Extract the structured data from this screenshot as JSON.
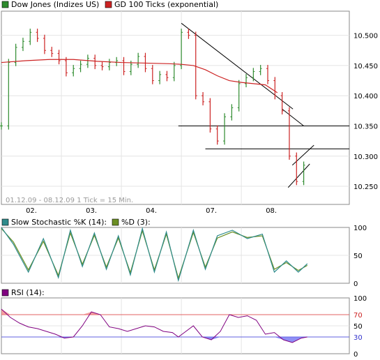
{
  "chart_data": [
    {
      "type": "line",
      "panel": "price",
      "title": "",
      "legend": [
        {
          "name": "Dow Jones (Indizes US)",
          "color": "#2e8b2e"
        },
        {
          "name": "GD 100 Ticks (exponential)",
          "color": "#cc2222"
        }
      ],
      "info": "01.12.09 - 08.12.09   1 Tick = 15 Min.",
      "ylim": [
        10220,
        10540
      ],
      "yticks": [
        "10.500",
        "10.450",
        "10.400",
        "10.350",
        "10.300",
        "10.250"
      ],
      "ytick_values": [
        10500,
        10450,
        10400,
        10350,
        10300,
        10250
      ],
      "x_categories": [
        "02.",
        "03.",
        "04.",
        "07.",
        "08."
      ],
      "x_positions": [
        0.5,
        1.5,
        2.5,
        3.5,
        4.5
      ],
      "xlim": [
        0,
        5.8
      ],
      "session_starts": [
        0,
        1,
        2,
        3,
        4
      ],
      "series": [
        {
          "name": "Dow Jones (Indizes US)",
          "style": "bars",
          "x": [
            0,
            0.12,
            0.24,
            0.36,
            0.48,
            0.6,
            0.72,
            0.84,
            0.96,
            1.08,
            1.2,
            1.32,
            1.44,
            1.56,
            1.68,
            1.8,
            1.92,
            2.04,
            2.16,
            2.28,
            2.4,
            2.52,
            2.64,
            2.76,
            2.88,
            3.0,
            3.12,
            3.24,
            3.36,
            3.48,
            3.6,
            3.72,
            3.84,
            3.96,
            4.08,
            4.2,
            4.32,
            4.44,
            4.56,
            4.68,
            4.8,
            4.92,
            5.04
          ],
          "values": [
            10350,
            10455,
            10480,
            10490,
            10505,
            10495,
            10475,
            10470,
            10458,
            10438,
            10445,
            10452,
            10462,
            10450,
            10448,
            10455,
            10458,
            10440,
            10452,
            10465,
            10445,
            10425,
            10435,
            10430,
            10450,
            10505,
            10500,
            10400,
            10390,
            10345,
            10325,
            10365,
            10380,
            10420,
            10430,
            10440,
            10445,
            10425,
            10400,
            10375,
            10300,
            10258,
            10285
          ]
        },
        {
          "name": "GD 100 Ticks (exponential)",
          "style": "line",
          "x": [
            0,
            0.4,
            0.8,
            1.2,
            1.6,
            2.0,
            2.4,
            2.8,
            3.0,
            3.2,
            3.4,
            3.6,
            3.8,
            4.0,
            4.2,
            4.4,
            4.6
          ],
          "values": [
            10455,
            10458,
            10460,
            10460,
            10457,
            10455,
            10454,
            10453,
            10452,
            10450,
            10443,
            10433,
            10425,
            10422,
            10420,
            10418,
            10405
          ]
        }
      ],
      "trend_lines": [
        {
          "x": [
            3.0,
            4.86
          ],
          "y": [
            10520,
            10378
          ]
        },
        {
          "x": [
            4.68,
            5.04
          ],
          "y": [
            10378,
            10350
          ]
        },
        {
          "x": [
            3.4,
            5.8
          ],
          "y": [
            10312,
            10312
          ]
        },
        {
          "x": [
            2.95,
            5.8
          ],
          "y": [
            10350,
            10350
          ]
        },
        {
          "x": [
            4.78,
            5.14
          ],
          "y": [
            10248,
            10287
          ]
        },
        {
          "x": [
            4.85,
            5.21
          ],
          "y": [
            10285,
            10318
          ]
        }
      ]
    },
    {
      "type": "line",
      "panel": "stochastic",
      "legend": [
        {
          "name": "Slow Stochastic %K (14):",
          "color": "#2e8b8b"
        },
        {
          "name": "%D (3):",
          "color": "#6b8e23"
        }
      ],
      "ylim": [
        0,
        100
      ],
      "yticks": [
        "100",
        "50",
        "0"
      ],
      "ytick_values": [
        100,
        50,
        0
      ],
      "series": [
        {
          "name": "Slow Stochastic %K (14):",
          "x": [
            0,
            0.2,
            0.45,
            0.7,
            0.95,
            1.15,
            1.35,
            1.55,
            1.75,
            1.95,
            2.15,
            2.35,
            2.55,
            2.75,
            2.95,
            3.2,
            3.4,
            3.6,
            3.85,
            4.1,
            4.35,
            4.55,
            4.75,
            4.95,
            5.1
          ],
          "values": [
            100,
            70,
            20,
            80,
            10,
            95,
            30,
            90,
            25,
            85,
            15,
            98,
            20,
            92,
            5,
            95,
            25,
            85,
            95,
            80,
            88,
            20,
            40,
            20,
            35
          ]
        },
        {
          "name": "%D (3):",
          "x": [
            0,
            0.2,
            0.45,
            0.7,
            0.95,
            1.15,
            1.35,
            1.55,
            1.75,
            1.95,
            2.15,
            2.35,
            2.55,
            2.75,
            2.95,
            3.2,
            3.4,
            3.6,
            3.85,
            4.1,
            4.35,
            4.55,
            4.75,
            4.95,
            5.1
          ],
          "values": [
            98,
            74,
            24,
            75,
            14,
            90,
            34,
            86,
            29,
            81,
            19,
            94,
            24,
            88,
            9,
            91,
            29,
            81,
            92,
            82,
            85,
            25,
            37,
            23,
            32
          ]
        }
      ]
    },
    {
      "type": "line",
      "panel": "rsi",
      "legend": [
        {
          "name": "RSI (14):",
          "color": "#800080"
        }
      ],
      "ylim": [
        0,
        100
      ],
      "yticks": [
        "100",
        "70",
        "50",
        "30",
        "0"
      ],
      "ytick_values": [
        100,
        70,
        50,
        30,
        0
      ],
      "bands": [
        70,
        30
      ],
      "series": [
        {
          "name": "RSI (14):",
          "x": [
            0,
            0.15,
            0.3,
            0.45,
            0.6,
            0.75,
            0.9,
            1.05,
            1.2,
            1.35,
            1.5,
            1.65,
            1.8,
            1.95,
            2.1,
            2.25,
            2.4,
            2.55,
            2.7,
            2.85,
            2.95,
            3.05,
            3.2,
            3.35,
            3.5,
            3.65,
            3.8,
            3.95,
            4.1,
            4.25,
            4.4,
            4.55,
            4.7,
            4.85,
            5.0,
            5.1
          ],
          "values": [
            80,
            65,
            55,
            48,
            45,
            40,
            35,
            28,
            30,
            50,
            75,
            70,
            48,
            45,
            40,
            45,
            50,
            48,
            40,
            38,
            30,
            38,
            50,
            30,
            25,
            40,
            70,
            65,
            68,
            60,
            35,
            38,
            25,
            20,
            28,
            30
          ]
        }
      ]
    }
  ]
}
